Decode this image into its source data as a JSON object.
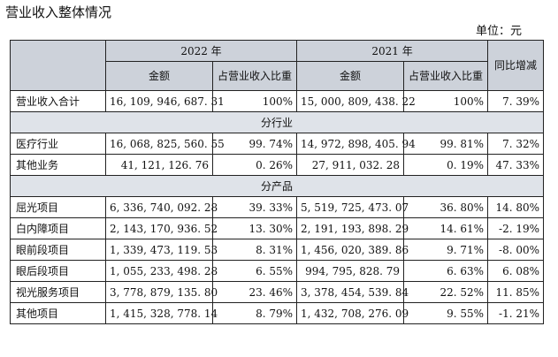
{
  "title": "营业收入整体情况",
  "unit": "单位：元",
  "header": {
    "y2022": "2022 年",
    "y2021": "2021 年",
    "amount": "金额",
    "ratio": "占营业收入比重",
    "yoy": "同比增减"
  },
  "total": {
    "label": "营业收入合计",
    "a2022": "16, 109, 946, 687. 31",
    "r2022": "100%",
    "a2021": "15, 000, 809, 438. 22",
    "r2021": "100%",
    "yoy": "7. 39%"
  },
  "sections": {
    "industry": "分行业",
    "product": "分产品"
  },
  "industry_rows": [
    {
      "label": "医疗行业",
      "a2022": "16, 068, 825, 560. 55",
      "r2022": "99. 74%",
      "a2021": "14, 972, 898, 405. 94",
      "r2021": "99. 81%",
      "yoy": "7. 32%"
    },
    {
      "label": "其他业务",
      "a2022": "41, 121, 126. 76",
      "r2022": "0. 26%",
      "a2021": "27, 911, 032. 28",
      "r2021": "0. 19%",
      "yoy": "47. 33%"
    }
  ],
  "product_rows": [
    {
      "label": "屈光项目",
      "a2022": "6, 336, 740, 092. 28",
      "r2022": "39. 33%",
      "a2021": "5, 519, 725, 473. 07",
      "r2021": "36. 80%",
      "yoy": "14. 80%"
    },
    {
      "label": "白内障项目",
      "a2022": "2, 143, 170, 936. 52",
      "r2022": "13. 30%",
      "a2021": "2, 191, 193, 898. 29",
      "r2021": "14. 61%",
      "yoy": "-2. 19%"
    },
    {
      "label": "眼前段项目",
      "a2022": "1, 339, 473, 119. 53",
      "r2022": "8. 31%",
      "a2021": "1, 456, 020, 389. 86",
      "r2021": "9. 71%",
      "yoy": "-8. 00%"
    },
    {
      "label": "眼后段项目",
      "a2022": "1, 055, 233, 498. 28",
      "r2022": "6. 55%",
      "a2021": "994, 795, 828. 79",
      "r2021": "6. 63%",
      "yoy": "6. 08%"
    },
    {
      "label": "视光服务项目",
      "a2022": "3, 778, 879, 135. 80",
      "r2022": "23. 46%",
      "a2021": "3, 378, 454, 539. 84",
      "r2021": "22. 52%",
      "yoy": "11. 85%"
    },
    {
      "label": "其他项目",
      "a2022": "1, 415, 328, 778. 14",
      "r2022": "8. 79%",
      "a2021": "1, 432, 708, 276. 09",
      "r2021": "9. 55%",
      "yoy": "-1. 21%"
    }
  ]
}
